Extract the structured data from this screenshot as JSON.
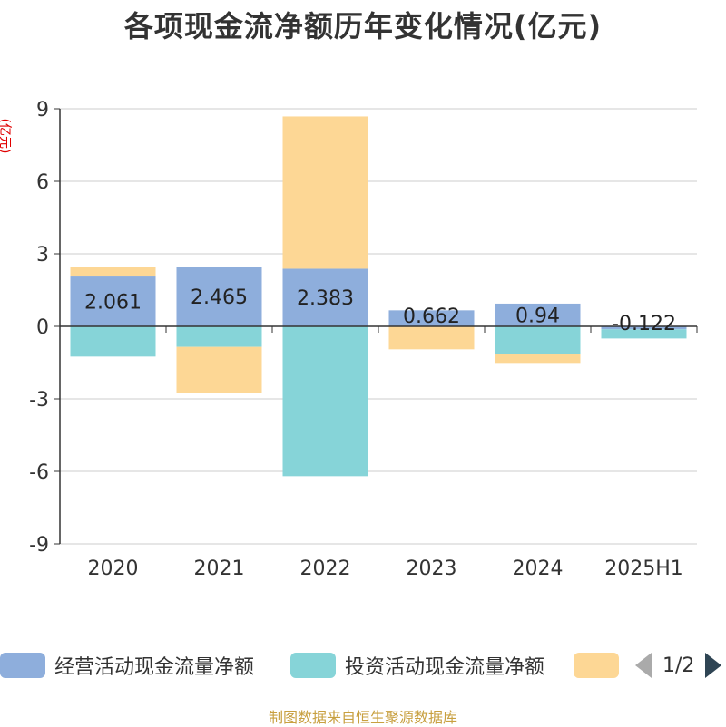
{
  "title": "各项现金流净额历年变化情况(亿元)",
  "source_note": "制图数据来自恒生聚源数据库",
  "legend": {
    "items": [
      {
        "label": "经营活动现金流量净额",
        "color": "#8eaedc"
      },
      {
        "label": "投资活动现金流量净额",
        "color": "#86d4d8"
      },
      {
        "label": "",
        "color": "#fdd795"
      }
    ],
    "page": "1/2"
  },
  "chart_data": {
    "type": "bar",
    "stacked": true,
    "ylabel": "(亿元)",
    "ylim": [
      -9,
      9
    ],
    "yticks": [
      9,
      6,
      3,
      0,
      -3,
      -6,
      -9
    ],
    "categories": [
      "2020",
      "2021",
      "2022",
      "2023",
      "2024",
      "2025H1"
    ],
    "series": [
      {
        "name": "经营活动现金流量净额",
        "color": "#8eaedc",
        "values": [
          2.061,
          2.465,
          2.383,
          0.662,
          0.94,
          -0.122
        ]
      },
      {
        "name": "投资活动现金流量净额",
        "color": "#86d4d8",
        "values": [
          -1.25,
          -0.85,
          -6.2,
          0,
          -1.15,
          -0.38
        ]
      },
      {
        "color": "#fdd795",
        "values": [
          0.4,
          -1.9,
          6.3,
          -0.95,
          -0.4,
          0
        ]
      }
    ],
    "data_labels": [
      "2.061",
      "2.465",
      "2.383",
      "0.662",
      "0.94",
      "-0.122"
    ],
    "grid": true
  }
}
